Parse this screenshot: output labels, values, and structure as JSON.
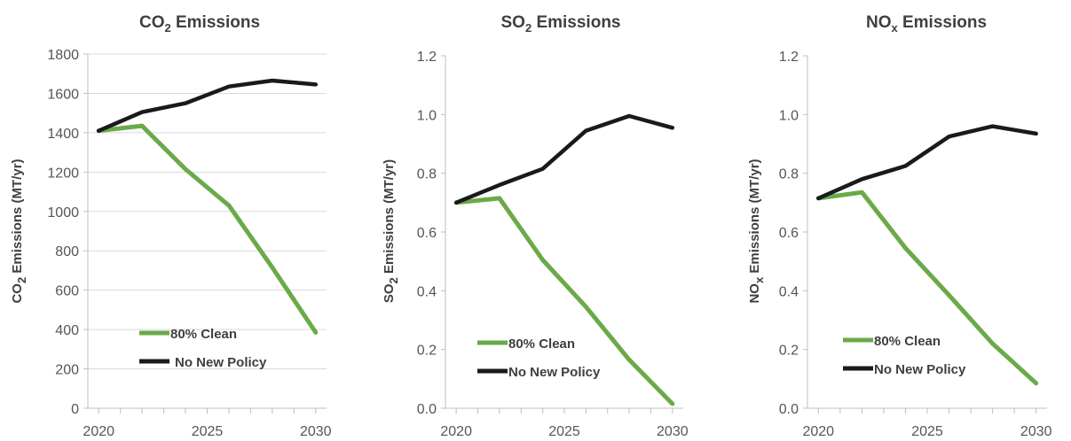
{
  "chart_data": [
    {
      "type": "line",
      "title": "CO₂ Emissions",
      "title_main": "CO",
      "title_sub": "2",
      "title_rest": " Emissions",
      "ylabel": "CO₂ Emissions (MT/yr)",
      "ylabel_main": "CO",
      "ylabel_sub": "2",
      "ylabel_rest": " Emissions (MT/yr)",
      "xlim": [
        2019.5,
        2030.5
      ],
      "ylim": [
        0,
        1800
      ],
      "yticks": [
        0,
        200,
        400,
        600,
        800,
        1000,
        1200,
        1400,
        1600,
        1800
      ],
      "ytick_labels": [
        "0",
        "200",
        "400",
        "600",
        "800",
        "1000",
        "1200",
        "1400",
        "1600",
        "1800"
      ],
      "xticks": [
        2020,
        2025,
        2030
      ],
      "xtick_labels": [
        "2020",
        "2025",
        "2030"
      ],
      "grid": true,
      "legend_position": "bottom-left",
      "series": [
        {
          "name": "80% Clean",
          "color": "#6aaa48",
          "x": [
            2020,
            2022,
            2024,
            2026,
            2028,
            2030
          ],
          "values": [
            1410,
            1435,
            1215,
            1030,
            715,
            385
          ]
        },
        {
          "name": "No New Policy",
          "color": "#1a1a1a",
          "x": [
            2020,
            2022,
            2024,
            2026,
            2028,
            2030
          ],
          "values": [
            1410,
            1505,
            1550,
            1635,
            1665,
            1645
          ]
        }
      ]
    },
    {
      "type": "line",
      "title": "SO₂ Emissions",
      "title_main": "SO",
      "title_sub": "2",
      "title_rest": " Emissions",
      "ylabel": "SO₂ Emissions (MT/yr)",
      "ylabel_main": "SO",
      "ylabel_sub": "2",
      "ylabel_rest": " Emissions (MT/yr)",
      "xlim": [
        2019.5,
        2030.5
      ],
      "ylim": [
        0,
        1.2
      ],
      "yticks": [
        0,
        0.2,
        0.4,
        0.6,
        0.8,
        1.0,
        1.2
      ],
      "ytick_labels": [
        "0.0",
        "0.2",
        "0.4",
        "0.6",
        "0.8",
        "1.0",
        "1.2"
      ],
      "xticks": [
        2020,
        2025,
        2030
      ],
      "xtick_labels": [
        "2020",
        "2025",
        "2030"
      ],
      "grid": false,
      "legend_position": "bottom-left",
      "series": [
        {
          "name": "80% Clean",
          "color": "#6aaa48",
          "x": [
            2020,
            2022,
            2024,
            2026,
            2028,
            2030
          ],
          "values": [
            0.7,
            0.715,
            0.505,
            0.345,
            0.165,
            0.015
          ]
        },
        {
          "name": "No New Policy",
          "color": "#1a1a1a",
          "x": [
            2020,
            2022,
            2024,
            2026,
            2028,
            2030
          ],
          "values": [
            0.7,
            0.76,
            0.815,
            0.945,
            0.995,
            0.955
          ]
        }
      ]
    },
    {
      "type": "line",
      "title": "NOₓ Emissions",
      "title_main": "NO",
      "title_sub": "x",
      "title_rest": " Emissions",
      "ylabel": "NOₓ Emissions (MT/yr)",
      "ylabel_main": "NO",
      "ylabel_sub": "x",
      "ylabel_rest": " Emissions (MT/yr)",
      "xlim": [
        2019.5,
        2030.5
      ],
      "ylim": [
        0,
        1.2
      ],
      "yticks": [
        0,
        0.2,
        0.4,
        0.6,
        0.8,
        1.0,
        1.2
      ],
      "ytick_labels": [
        "0.0",
        "0.2",
        "0.4",
        "0.6",
        "0.8",
        "1.0",
        "1.2"
      ],
      "xticks": [
        2020,
        2025,
        2030
      ],
      "xtick_labels": [
        "2020",
        "2025",
        "2030"
      ],
      "grid": false,
      "legend_position": "bottom-left",
      "series": [
        {
          "name": "80% Clean",
          "color": "#6aaa48",
          "x": [
            2020,
            2022,
            2024,
            2026,
            2028,
            2030
          ],
          "values": [
            0.715,
            0.735,
            0.545,
            0.385,
            0.22,
            0.085
          ]
        },
        {
          "name": "No New Policy",
          "color": "#1a1a1a",
          "x": [
            2020,
            2022,
            2024,
            2026,
            2028,
            2030
          ],
          "values": [
            0.715,
            0.78,
            0.825,
            0.925,
            0.96,
            0.935
          ]
        }
      ]
    }
  ]
}
